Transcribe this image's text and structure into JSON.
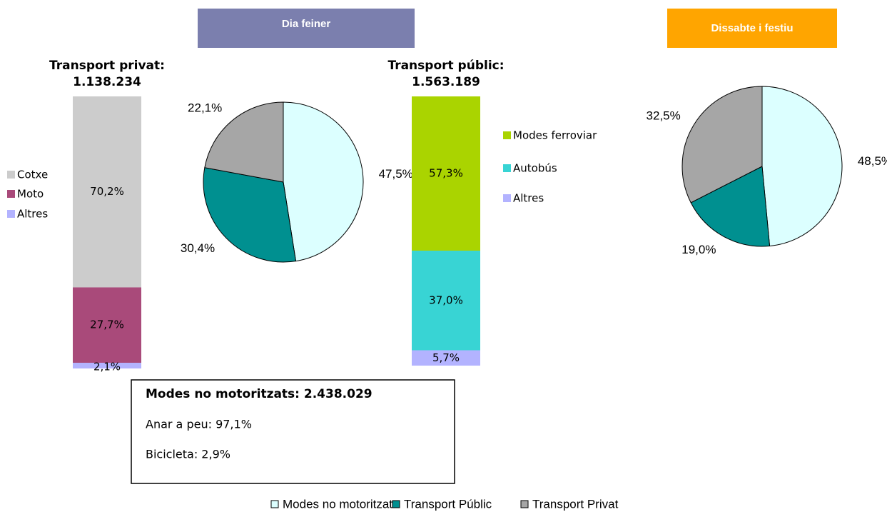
{
  "headers": [
    "Dia feiner",
    "Dissabte i festiu"
  ],
  "note": {
    "title": "Modes no motoritzats: 2.438.029",
    "lines": [
      "Anar a peu: 97,1%",
      "Bicicleta: 2,9%"
    ]
  },
  "chart_data": [
    {
      "type": "bar",
      "stacked": true,
      "title": "Transport privat:",
      "subtitle": "1.138.234",
      "legend": "left",
      "series": [
        {
          "name": "Cotxe",
          "color": "#cccccc",
          "values": [
            70.2
          ],
          "value_labels": [
            "70,2%"
          ]
        },
        {
          "name": "Moto",
          "color": "#a94a7a",
          "values": [
            27.7
          ],
          "value_labels": [
            "27,7%"
          ]
        },
        {
          "name": "Altres",
          "color": "#b3b3ff",
          "values": [
            2.1
          ],
          "value_labels": [
            "2,1%"
          ]
        }
      ]
    },
    {
      "type": "pie",
      "categories": [
        "Modes no motoritzats",
        "Transport Públic",
        "Transport Privat"
      ],
      "values": [
        47.5,
        30.4,
        22.1
      ],
      "value_labels": [
        "47,5%",
        "30,4%",
        "22,1%"
      ],
      "colors": [
        "#dcffff",
        "#009090",
        "#a6a6a6"
      ],
      "legend": "bottom"
    },
    {
      "type": "bar",
      "stacked": true,
      "title": "Transport públic:",
      "subtitle": "1.563.189",
      "legend": "right",
      "series": [
        {
          "name": "Modes  ferroviar",
          "color": "#aad400",
          "values": [
            57.3
          ],
          "value_labels": [
            "57,3%"
          ]
        },
        {
          "name": "Autobús",
          "color": "#38d4d4",
          "values": [
            37.0
          ],
          "value_labels": [
            "37,0%"
          ]
        },
        {
          "name": "Altres",
          "color": "#b3b3ff",
          "values": [
            5.7
          ],
          "value_labels": [
            "5,7%"
          ]
        }
      ]
    },
    {
      "type": "pie",
      "categories": [
        "Modes no motoritzats",
        "Transport Públic",
        "Transport Privat"
      ],
      "values": [
        48.5,
        19.0,
        32.5
      ],
      "value_labels": [
        "48,5%",
        "19,0%",
        "32,5%"
      ],
      "colors": [
        "#dcffff",
        "#009090",
        "#a6a6a6"
      ]
    }
  ]
}
